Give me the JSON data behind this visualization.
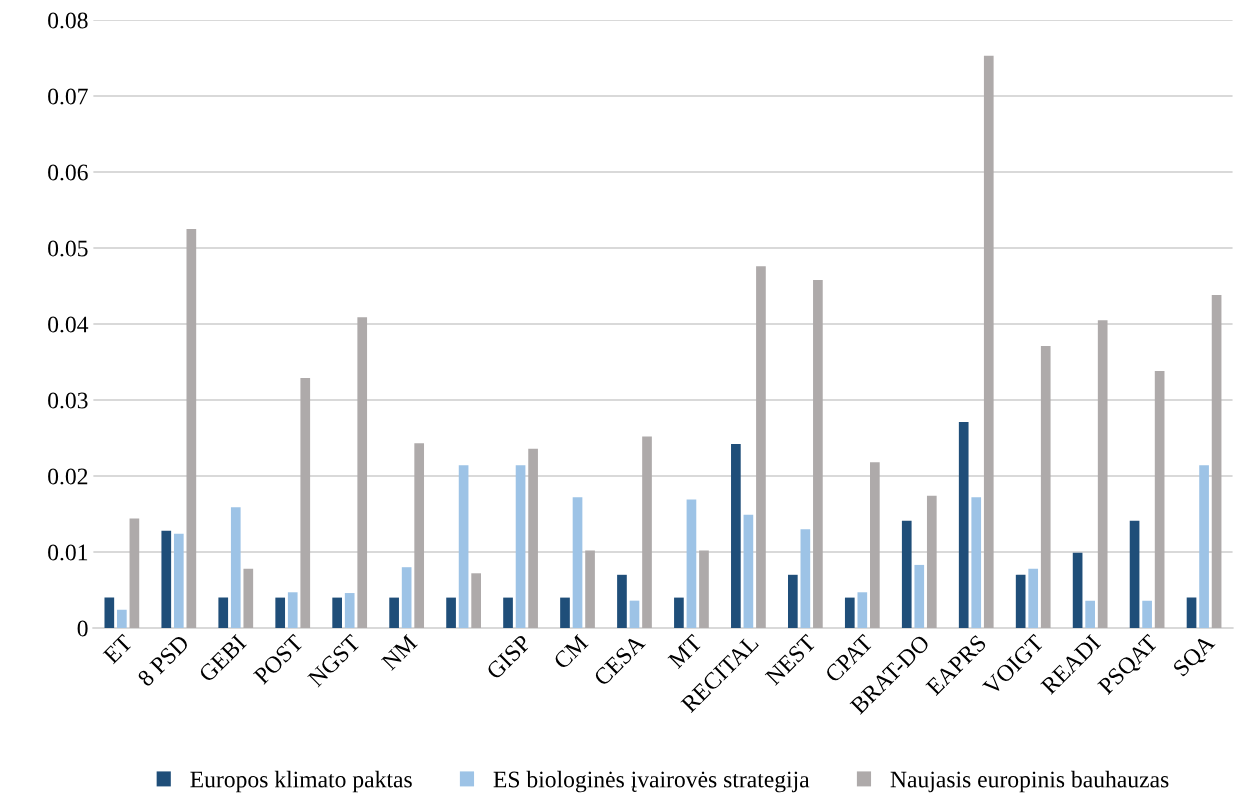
{
  "chart_data": {
    "type": "bar",
    "categories": [
      "ET",
      "8 PSD",
      "GEBI",
      "POST",
      "NGST",
      "NM",
      null,
      "GISP",
      "CM",
      "CESA",
      "MT",
      "RECITAL",
      "NEST",
      "CPAT",
      "BRAT-DO",
      "EAPRS",
      "VOIGT",
      "READI",
      "PSQAT",
      "SQA"
    ],
    "series": [
      {
        "name": "Europos klimato paktas",
        "color": "#1f4e79",
        "values": [
          0.004,
          0.0128,
          0.004,
          0.004,
          0.004,
          0.004,
          0.004,
          0.004,
          0.004,
          0.007,
          0.004,
          0.0242,
          0.007,
          0.004,
          0.0141,
          0.0271,
          0.007,
          0.0099,
          0.0141,
          0.004
        ]
      },
      {
        "name": "ES biologinės įvairovės strategija",
        "color": "#9dc3e6",
        "values": [
          0.0024,
          0.0124,
          0.0159,
          0.0047,
          0.0046,
          0.008,
          0.0214,
          0.0214,
          0.0172,
          0.0036,
          0.0169,
          0.0149,
          0.013,
          0.0047,
          0.0083,
          0.0172,
          0.0078,
          0.0036,
          0.0036,
          0.0214
        ]
      },
      {
        "name": "Naujasis europinis bauhauzas",
        "color": "#aeaaaa",
        "values": [
          0.0144,
          0.0525,
          0.0078,
          0.0329,
          0.0409,
          0.0243,
          0.0072,
          0.0236,
          0.0102,
          0.0252,
          0.0102,
          0.0476,
          0.0458,
          0.0218,
          0.0174,
          0.0753,
          0.0371,
          0.0405,
          0.0338,
          0.0438
        ]
      }
    ],
    "ylim": [
      0,
      0.08
    ],
    "yticks": [
      0,
      0.01,
      0.02,
      0.03,
      0.04,
      0.05,
      0.06,
      0.07,
      0.08
    ],
    "grid": "y",
    "legend": "bottom"
  }
}
